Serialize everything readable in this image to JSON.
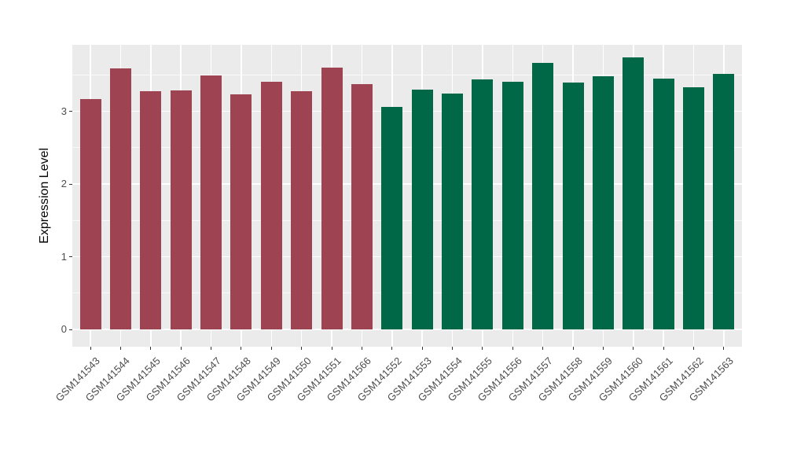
{
  "chart_data": {
    "type": "bar",
    "title": "",
    "xlabel": "",
    "ylabel": "Expression Level",
    "ylim": [
      0,
      3.92
    ],
    "yticks": [
      0,
      1,
      2,
      3
    ],
    "minor_gridlines": [
      0.5,
      1.5,
      2.5,
      3.5
    ],
    "grid": "on",
    "legend_position": "none",
    "panel_background": "#EBEBEB",
    "gridline_color": "#FFFFFF",
    "tick_label_color": "#4D4D4D",
    "axis_title_color": "#000000",
    "palette": {
      "group1": "#9E4351",
      "group2": "#006847"
    },
    "categories": [
      "GSM141543",
      "GSM141544",
      "GSM141545",
      "GSM141546",
      "GSM141547",
      "GSM141548",
      "GSM141549",
      "GSM141550",
      "GSM141551",
      "GSM141566",
      "GSM141552",
      "GSM141553",
      "GSM141554",
      "GSM141555",
      "GSM141556",
      "GSM141557",
      "GSM141558",
      "GSM141559",
      "GSM141560",
      "GSM141561",
      "GSM141562",
      "GSM141563"
    ],
    "values": [
      3.17,
      3.59,
      3.28,
      3.29,
      3.49,
      3.23,
      3.41,
      3.28,
      3.6,
      3.37,
      3.06,
      3.3,
      3.24,
      3.44,
      3.41,
      3.66,
      3.39,
      3.48,
      3.74,
      3.45,
      3.33,
      3.51
    ],
    "group_of": [
      "group1",
      "group1",
      "group1",
      "group1",
      "group1",
      "group1",
      "group1",
      "group1",
      "group1",
      "group1",
      "group2",
      "group2",
      "group2",
      "group2",
      "group2",
      "group2",
      "group2",
      "group2",
      "group2",
      "group2",
      "group2",
      "group2"
    ]
  }
}
